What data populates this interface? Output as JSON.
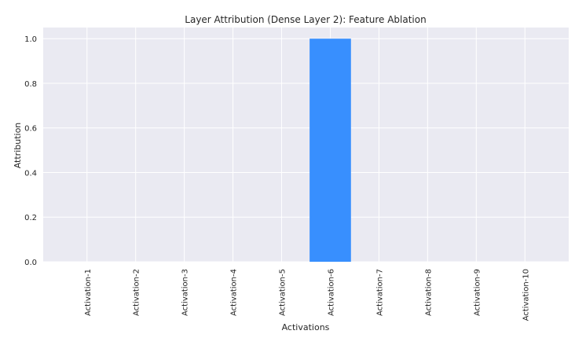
{
  "chart_data": {
    "type": "bar",
    "title": "Layer Attribution (Dense Layer 2): Feature Ablation",
    "xlabel": "Activations",
    "ylabel": "Attribution",
    "categories": [
      "Activation-1",
      "Activation-2",
      "Activation-3",
      "Activation-4",
      "Activation-5",
      "Activation-6",
      "Activation-7",
      "Activation-8",
      "Activation-9",
      "Activation-10"
    ],
    "values": [
      0,
      0,
      0,
      0,
      0,
      1.0,
      0,
      0,
      0,
      0
    ],
    "ylim": [
      0,
      1.05
    ],
    "yticks": [
      "0.0",
      "0.2",
      "0.4",
      "0.6",
      "0.8",
      "1.0"
    ],
    "grid": true,
    "bar_color": "#388ffe",
    "background_color": "#eaeaf2"
  }
}
